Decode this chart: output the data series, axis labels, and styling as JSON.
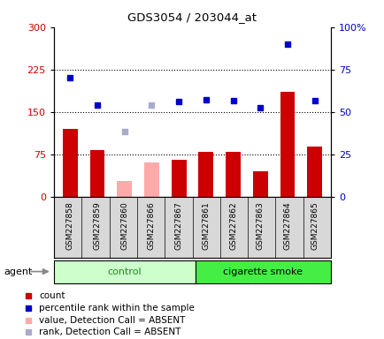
{
  "title": "GDS3054 / 203044_at",
  "samples": [
    "GSM227858",
    "GSM227859",
    "GSM227860",
    "GSM227866",
    "GSM227867",
    "GSM227861",
    "GSM227862",
    "GSM227863",
    "GSM227864",
    "GSM227865"
  ],
  "count_values": [
    120,
    83,
    null,
    null,
    65,
    80,
    79,
    45,
    185,
    88
  ],
  "count_absent": [
    null,
    null,
    28,
    60,
    null,
    null,
    null,
    null,
    null,
    null
  ],
  "rank_values": [
    210,
    162,
    null,
    null,
    168,
    172,
    170,
    158,
    270,
    170
  ],
  "rank_absent": [
    null,
    null,
    115,
    162,
    null,
    null,
    null,
    null,
    null,
    null
  ],
  "count_color": "#cc0000",
  "count_absent_color": "#ffaaaa",
  "rank_color": "#0000cc",
  "rank_absent_color": "#aaaacc",
  "ylim_left": [
    0,
    300
  ],
  "yticks_left": [
    0,
    75,
    150,
    225,
    300
  ],
  "ytick_labels_right": [
    "0",
    "25",
    "50",
    "75",
    "100%"
  ],
  "yticks_right_pos": [
    0,
    75,
    150,
    225,
    300
  ],
  "hlines": [
    75,
    150,
    225
  ],
  "bar_width": 0.55,
  "background_color": "#d8d8d8",
  "plot_bg": "#ffffff",
  "ctrl_color": "#ccffcc",
  "smoke_color": "#44ee44",
  "text_green": "#228822"
}
